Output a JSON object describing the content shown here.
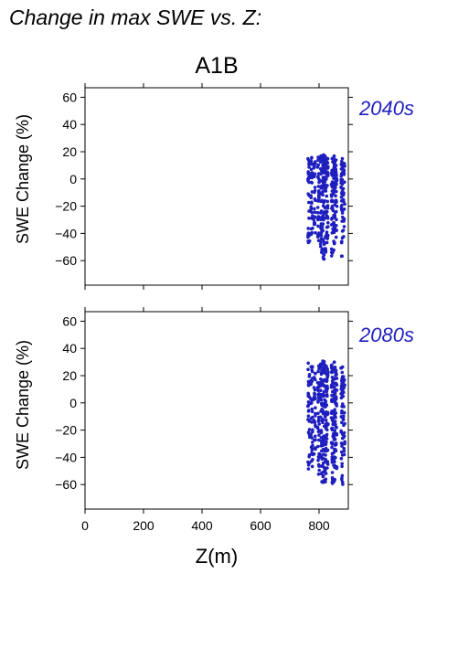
{
  "header": {
    "suptitle": "Change in max SWE vs. Z:",
    "scenario": "A1B"
  },
  "colors": {
    "points": "#1f1fbf",
    "axes": "#000000"
  },
  "chart_data": [
    {
      "type": "scatter",
      "panel_label": "2040s",
      "xlabel": "",
      "ylabel": "SWE Change (%)",
      "xlim": [
        0,
        900
      ],
      "ylim": [
        -78,
        67
      ],
      "xticks": [
        0,
        200,
        400,
        600,
        800
      ],
      "yticks": [
        -60,
        -40,
        -20,
        0,
        20,
        40,
        60
      ],
      "show_x_tick_labels": false,
      "columns": [
        {
          "x": 765,
          "ymin": -47,
          "ymax": 15,
          "n": 30
        },
        {
          "x": 775,
          "ymin": -45,
          "ymax": 16,
          "n": 34
        },
        {
          "x": 785,
          "ymin": -40,
          "ymax": 13,
          "n": 26
        },
        {
          "x": 798,
          "ymin": -52,
          "ymax": 17,
          "n": 36
        },
        {
          "x": 808,
          "ymin": -58,
          "ymax": 17,
          "n": 44
        },
        {
          "x": 815,
          "ymin": -60,
          "ymax": 18,
          "n": 48
        },
        {
          "x": 822,
          "ymin": -56,
          "ymax": 17,
          "n": 44
        },
        {
          "x": 828,
          "ymin": -48,
          "ymax": 15,
          "n": 34
        },
        {
          "x": 845,
          "ymin": -58,
          "ymax": 15,
          "n": 44
        },
        {
          "x": 852,
          "ymin": -55,
          "ymax": 17,
          "n": 46
        },
        {
          "x": 858,
          "ymin": -45,
          "ymax": 14,
          "n": 34
        },
        {
          "x": 878,
          "ymin": -58,
          "ymax": 15,
          "n": 40
        },
        {
          "x": 885,
          "ymin": -45,
          "ymax": 12,
          "n": 24
        }
      ]
    },
    {
      "type": "scatter",
      "panel_label": "2080s",
      "xlabel": "Z(m)",
      "ylabel": "SWE Change (%)",
      "xlim": [
        0,
        900
      ],
      "ylim": [
        -78,
        67
      ],
      "xticks": [
        0,
        200,
        400,
        600,
        800
      ],
      "yticks": [
        -60,
        -40,
        -20,
        0,
        20,
        40,
        60
      ],
      "show_x_tick_labels": true,
      "columns": [
        {
          "x": 765,
          "ymin": -50,
          "ymax": 30,
          "n": 34
        },
        {
          "x": 775,
          "ymin": -48,
          "ymax": 27,
          "n": 36
        },
        {
          "x": 785,
          "ymin": -42,
          "ymax": 22,
          "n": 26
        },
        {
          "x": 798,
          "ymin": -55,
          "ymax": 28,
          "n": 40
        },
        {
          "x": 808,
          "ymin": -58,
          "ymax": 30,
          "n": 48
        },
        {
          "x": 815,
          "ymin": -62,
          "ymax": 31,
          "n": 52
        },
        {
          "x": 822,
          "ymin": -58,
          "ymax": 28,
          "n": 46
        },
        {
          "x": 828,
          "ymin": -50,
          "ymax": 25,
          "n": 34
        },
        {
          "x": 845,
          "ymin": -63,
          "ymax": 28,
          "n": 48
        },
        {
          "x": 852,
          "ymin": -60,
          "ymax": 30,
          "n": 50
        },
        {
          "x": 858,
          "ymin": -50,
          "ymax": 24,
          "n": 36
        },
        {
          "x": 878,
          "ymin": -62,
          "ymax": 27,
          "n": 44
        },
        {
          "x": 885,
          "ymin": -50,
          "ymax": 20,
          "n": 26
        }
      ]
    }
  ]
}
